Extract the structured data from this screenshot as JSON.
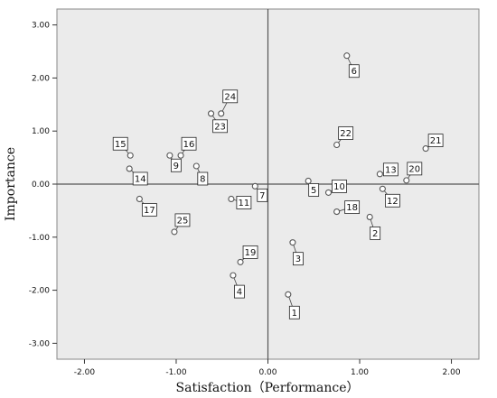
{
  "chart_data": {
    "type": "scatter",
    "xlabel": "Satisfaction（Performance）",
    "ylabel": "Importance",
    "xlim": [
      -2.3,
      2.3
    ],
    "ylim": [
      -3.3,
      3.3
    ],
    "xticks": [
      -2.0,
      -1.0,
      0.0,
      1.0,
      2.0
    ],
    "xtick_labels": [
      "-2.00",
      "-1.00",
      "0.00",
      "1.00",
      "2.00"
    ],
    "yticks": [
      3.0,
      2.0,
      1.0,
      0.0,
      -1.0,
      -2.0,
      -3.0
    ],
    "ytick_labels": [
      "3.00",
      "2.00",
      "1.00",
      "0.00",
      "-1.00",
      "-2.00",
      "-3.00"
    ],
    "reference_lines": {
      "x": 0,
      "y": 0
    },
    "grid": false,
    "plot_background": "#ebebeb",
    "marker_color": "#555555",
    "points": [
      {
        "label": "1",
        "x": 0.22,
        "y": -2.08
      },
      {
        "label": "2",
        "x": 1.11,
        "y": -0.62
      },
      {
        "label": "3",
        "x": 0.27,
        "y": -1.1
      },
      {
        "label": "4",
        "x": -0.38,
        "y": -1.72
      },
      {
        "label": "5",
        "x": 0.44,
        "y": 0.06
      },
      {
        "label": "6",
        "x": 0.86,
        "y": 2.42
      },
      {
        "label": "7",
        "x": -0.14,
        "y": -0.04
      },
      {
        "label": "8",
        "x": -0.78,
        "y": 0.34
      },
      {
        "label": "9",
        "x": -1.07,
        "y": 0.54
      },
      {
        "label": "10",
        "x": 0.66,
        "y": -0.16
      },
      {
        "label": "11",
        "x": -0.4,
        "y": -0.28
      },
      {
        "label": "12",
        "x": 1.25,
        "y": -0.09
      },
      {
        "label": "13",
        "x": 1.22,
        "y": 0.19
      },
      {
        "label": "14",
        "x": -1.51,
        "y": 0.29
      },
      {
        "label": "15",
        "x": -1.5,
        "y": 0.54
      },
      {
        "label": "16",
        "x": -0.95,
        "y": 0.54
      },
      {
        "label": "17",
        "x": -1.4,
        "y": -0.28
      },
      {
        "label": "18",
        "x": 0.75,
        "y": -0.52
      },
      {
        "label": "19",
        "x": -0.3,
        "y": -1.47
      },
      {
        "label": "20",
        "x": 1.51,
        "y": 0.07
      },
      {
        "label": "21",
        "x": 1.72,
        "y": 0.67
      },
      {
        "label": "22",
        "x": 0.75,
        "y": 0.74
      },
      {
        "label": "23",
        "x": -0.62,
        "y": 1.33
      },
      {
        "label": "24",
        "x": -0.51,
        "y": 1.33
      },
      {
        "label": "25",
        "x": -1.02,
        "y": -0.9
      }
    ]
  }
}
